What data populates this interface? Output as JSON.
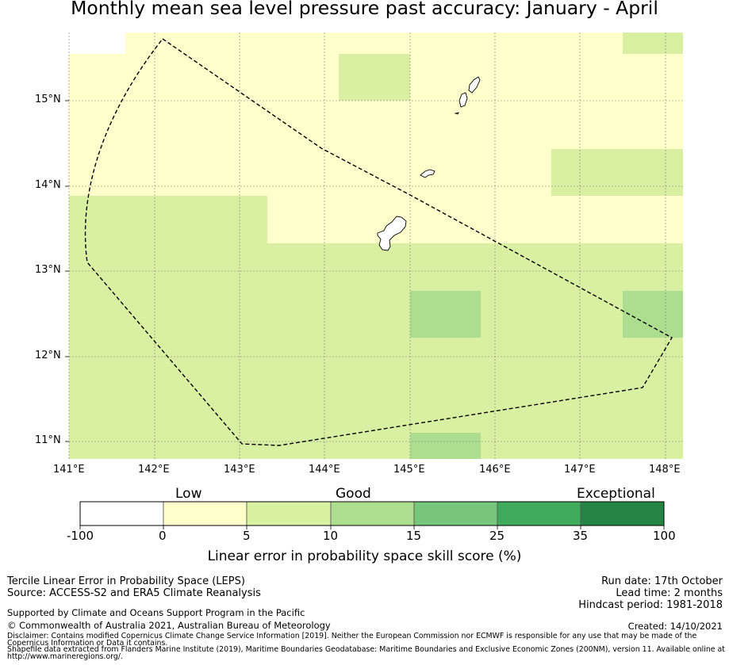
{
  "title": "Monthly mean sea level pressure past accuracy: January - April",
  "map": {
    "lat_ticks": [
      "15°N",
      "14°N",
      "13°N",
      "12°N",
      "11°N"
    ],
    "lon_ticks": [
      "141°E",
      "142°E",
      "143°E",
      "144°E",
      "145°E",
      "146°E",
      "147°E",
      "148°E"
    ]
  },
  "legend": {
    "categories": [
      "Low",
      "Good",
      "Exceptional"
    ],
    "boundaries": [
      "-100",
      "0",
      "5",
      "10",
      "15",
      "25",
      "35",
      "100"
    ],
    "colors": [
      "#ffffff",
      "#ffffcc",
      "#d9f0a3",
      "#addd8e",
      "#78c679",
      "#41ab5d",
      "#238443"
    ],
    "axis_label": "Linear error in probability space skill score (%)"
  },
  "footer": {
    "method": "Tercile Linear Error in Probability Space (LEPS)",
    "source": "Source: ACCESS-S2 and ERA5 Climate Reanalysis",
    "support": "Supported by Climate and Oceans Support Program in the Pacific",
    "copyright": "© Commonwealth of Australia 2021, Australian Bureau of Meteorology",
    "disclaimer1": "Disclaimer: Contains modified Copernicus Climate Change Service Information [2019]. Neither the European Commission nor ECMWF is responsible for any use that may be made of the",
    "disclaimer2": "Copernicus Information or Data it contains.",
    "shapefile1": "Shapefile data extracted from Flanders Marine Institute (2019), Maritime Boundaries Geodatabase: Maritime Boundaries and Exclusive Economic Zones (200NM), version 11. Available online at",
    "shapefile2": "http://www.marineregions.org/.",
    "run_date": "Run date: 17th October",
    "lead_time": "Lead time: 2 months",
    "hindcast": "Hindcast period: 1981-2018",
    "created": "Created: 14/10/2021"
  }
}
